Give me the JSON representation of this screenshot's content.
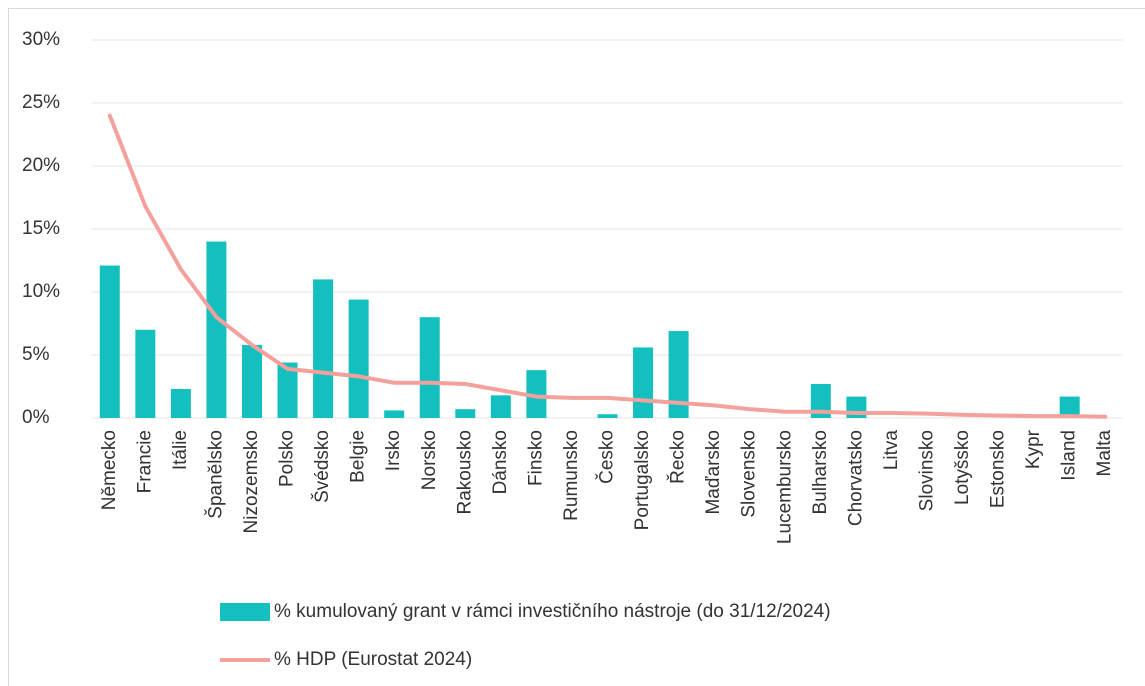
{
  "chart_data": {
    "type": "bar_line",
    "categories": [
      "Německo",
      "Francie",
      "Itálie",
      "Španělsko",
      "Nizozemsko",
      "Polsko",
      "Švédsko",
      "Belgie",
      "Irsko",
      "Norsko",
      "Rakousko",
      "Dánsko",
      "Finsko",
      "Rumunsko",
      "Česko",
      "Portugalsko",
      "Řecko",
      "Maďarsko",
      "Slovensko",
      "Lucembursko",
      "Bulharsko",
      "Chorvatsko",
      "Litva",
      "Slovinsko",
      "Lotyšsko",
      "Estonsko",
      "Kypr",
      "Island",
      "Malta"
    ],
    "series": [
      {
        "name": "% kumulovaný grant v rámci investičního nástroje (do 31/12/2024)",
        "type": "bar",
        "color": "#13c0bf",
        "values": [
          12.1,
          7.0,
          2.3,
          14.0,
          5.8,
          4.4,
          11.0,
          9.4,
          0.6,
          8.0,
          0.7,
          1.8,
          3.8,
          0,
          0.3,
          5.6,
          6.9,
          0,
          0,
          0,
          2.7,
          1.7,
          0,
          0,
          0,
          0,
          0,
          1.7,
          0
        ]
      },
      {
        "name": "% HDP (Eurostat 2024)",
        "type": "line",
        "color": "#f4a09c",
        "values": [
          24.0,
          16.8,
          11.8,
          8.0,
          5.8,
          3.9,
          3.6,
          3.3,
          2.8,
          2.8,
          2.7,
          2.2,
          1.7,
          1.6,
          1.6,
          1.4,
          1.2,
          1.0,
          0.7,
          0.5,
          0.5,
          0.4,
          0.4,
          0.35,
          0.25,
          0.2,
          0.15,
          0.15,
          0.1
        ]
      }
    ],
    "ylim": [
      0,
      30
    ],
    "yticks": [
      {
        "value": 0,
        "label": "0%"
      },
      {
        "value": 5,
        "label": "5%"
      },
      {
        "value": 10,
        "label": "10%"
      },
      {
        "value": 15,
        "label": "15%"
      },
      {
        "value": 20,
        "label": "20%"
      },
      {
        "value": 25,
        "label": "25%"
      },
      {
        "value": 30,
        "label": "30%"
      }
    ],
    "grid": true
  }
}
